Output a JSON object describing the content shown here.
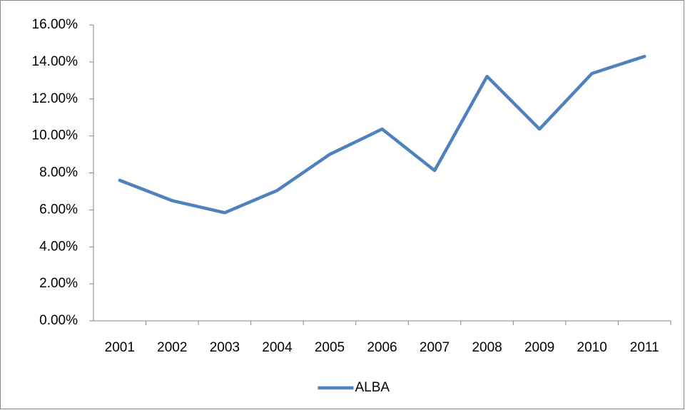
{
  "chart_data": {
    "type": "line",
    "categories": [
      "2001",
      "2002",
      "2003",
      "2004",
      "2005",
      "2006",
      "2007",
      "2008",
      "2009",
      "2010",
      "2011"
    ],
    "series": [
      {
        "name": "ALBA",
        "color": "#4f81bd",
        "values": [
          7.6,
          6.5,
          5.85,
          7.05,
          9.0,
          10.37,
          8.13,
          13.22,
          10.37,
          13.38,
          14.3
        ]
      }
    ],
    "ylim": [
      0,
      16
    ],
    "yticks": [
      {
        "value": 0,
        "label": "0.00%"
      },
      {
        "value": 2,
        "label": "2.00%"
      },
      {
        "value": 4,
        "label": "4.00%"
      },
      {
        "value": 6,
        "label": "6.00%"
      },
      {
        "value": 8,
        "label": "8.00%"
      },
      {
        "value": 10,
        "label": "10.00%"
      },
      {
        "value": 12,
        "label": "12.00%"
      },
      {
        "value": 14,
        "label": "14.00%"
      },
      {
        "value": 16,
        "label": "16.00%"
      }
    ],
    "grid": false,
    "legend": "bottom"
  }
}
